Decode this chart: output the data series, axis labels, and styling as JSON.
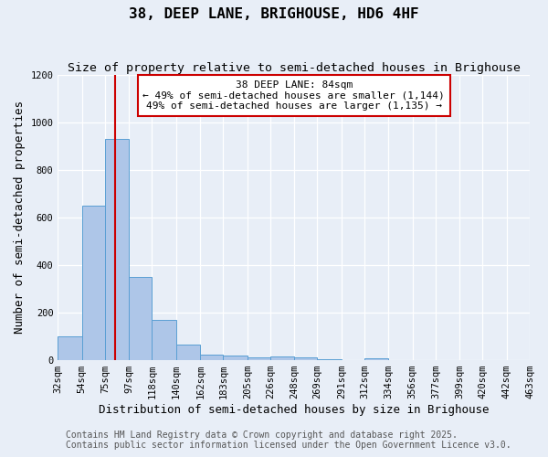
{
  "title": "38, DEEP LANE, BRIGHOUSE, HD6 4HF",
  "subtitle": "Size of property relative to semi-detached houses in Brighouse",
  "xlabel": "Distribution of semi-detached houses by size in Brighouse",
  "ylabel": "Number of semi-detached properties",
  "bin_edges": [
    32,
    54,
    75,
    97,
    118,
    140,
    162,
    183,
    205,
    226,
    248,
    269,
    291,
    312,
    334,
    356,
    377,
    399,
    420,
    442,
    463
  ],
  "bin_counts": [
    100,
    650,
    930,
    350,
    170,
    65,
    25,
    18,
    10,
    15,
    10,
    3,
    2,
    8,
    1,
    0,
    0,
    0,
    0,
    0
  ],
  "bar_color": "#aec6e8",
  "bar_edge_color": "#5a9fd4",
  "property_size": 84,
  "red_line_color": "#cc0000",
  "annotation_line1": "38 DEEP LANE: 84sqm",
  "annotation_line2": "← 49% of semi-detached houses are smaller (1,144)",
  "annotation_line3": "49% of semi-detached houses are larger (1,135) →",
  "annotation_box_color": "#ffffff",
  "annotation_box_edge": "#cc0000",
  "ylim": [
    0,
    1200
  ],
  "yticks": [
    0,
    200,
    400,
    600,
    800,
    1000,
    1200
  ],
  "background_color": "#e8eef7",
  "plot_bg_color": "#e8eef7",
  "footer_line1": "Contains HM Land Registry data © Crown copyright and database right 2025.",
  "footer_line2": "Contains public sector information licensed under the Open Government Licence v3.0.",
  "title_fontsize": 11.5,
  "subtitle_fontsize": 9.5,
  "tick_label_fontsize": 7.5,
  "axis_label_fontsize": 9,
  "annotation_fontsize": 8,
  "footer_fontsize": 7
}
